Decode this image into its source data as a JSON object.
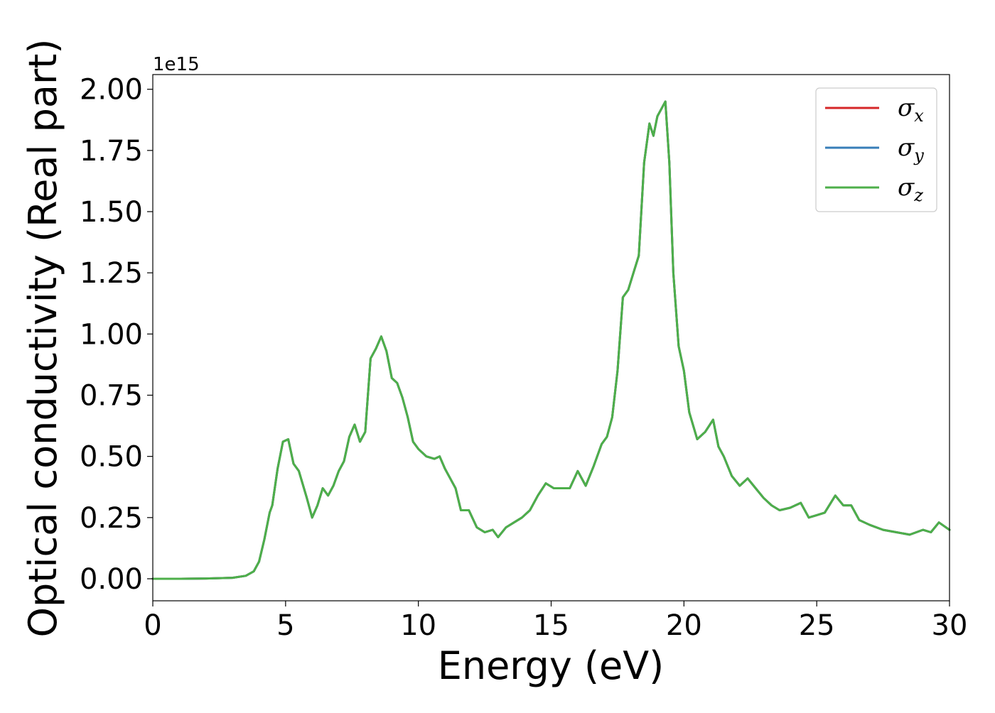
{
  "chart_data": {
    "type": "line",
    "xlabel": "Energy (eV)",
    "ylabel": "Optical conductivity (Real part)",
    "y_offset_label": "1e15",
    "y_scale": 1000000000000000.0,
    "xlim": [
      0,
      30
    ],
    "ylim": [
      -0.09,
      2.06
    ],
    "xticks": [
      0,
      5,
      10,
      15,
      20,
      25,
      30
    ],
    "xtick_labels": [
      "0",
      "5",
      "10",
      "15",
      "20",
      "25",
      "30"
    ],
    "yticks": [
      0.0,
      0.25,
      0.5,
      0.75,
      1.0,
      1.25,
      1.5,
      1.75,
      2.0
    ],
    "ytick_labels": [
      "0.00",
      "0.25",
      "0.50",
      "0.75",
      "1.00",
      "1.25",
      "1.50",
      "1.75",
      "2.00"
    ],
    "grid": false,
    "legend_position": "top-right",
    "x": [
      0,
      1,
      2,
      3,
      3.5,
      3.8,
      4.0,
      4.2,
      4.4,
      4.5,
      4.7,
      4.9,
      5.1,
      5.3,
      5.5,
      5.8,
      6.0,
      6.2,
      6.4,
      6.6,
      6.8,
      7.0,
      7.2,
      7.4,
      7.6,
      7.8,
      8.0,
      8.2,
      8.4,
      8.6,
      8.8,
      9.0,
      9.2,
      9.4,
      9.6,
      9.8,
      10.0,
      10.3,
      10.6,
      10.8,
      11.0,
      11.2,
      11.4,
      11.6,
      11.9,
      12.2,
      12.5,
      12.8,
      13.0,
      13.3,
      13.6,
      13.9,
      14.2,
      14.5,
      14.8,
      15.1,
      15.4,
      15.7,
      16.0,
      16.3,
      16.6,
      16.9,
      17.1,
      17.3,
      17.5,
      17.7,
      17.9,
      18.1,
      18.3,
      18.5,
      18.7,
      18.85,
      19.0,
      19.15,
      19.3,
      19.45,
      19.6,
      19.8,
      20.0,
      20.2,
      20.5,
      20.8,
      21.1,
      21.3,
      21.5,
      21.8,
      22.1,
      22.4,
      22.7,
      23.0,
      23.3,
      23.6,
      24.0,
      24.4,
      24.7,
      25.0,
      25.3,
      25.7,
      26.0,
      26.3,
      26.6,
      27.0,
      27.5,
      28.0,
      28.5,
      29.0,
      29.3,
      29.6,
      30.0
    ],
    "series": [
      {
        "name": "σx",
        "color": "#d62728",
        "values": [
          0.0,
          0.0,
          0.001,
          0.004,
          0.012,
          0.03,
          0.07,
          0.16,
          0.27,
          0.3,
          0.45,
          0.56,
          0.57,
          0.47,
          0.44,
          0.33,
          0.25,
          0.3,
          0.37,
          0.34,
          0.38,
          0.44,
          0.48,
          0.58,
          0.63,
          0.56,
          0.6,
          0.9,
          0.94,
          0.99,
          0.93,
          0.82,
          0.8,
          0.74,
          0.66,
          0.56,
          0.53,
          0.5,
          0.49,
          0.5,
          0.45,
          0.41,
          0.37,
          0.28,
          0.28,
          0.21,
          0.19,
          0.2,
          0.17,
          0.21,
          0.23,
          0.25,
          0.28,
          0.34,
          0.39,
          0.37,
          0.37,
          0.37,
          0.44,
          0.38,
          0.46,
          0.55,
          0.58,
          0.66,
          0.85,
          1.15,
          1.18,
          1.25,
          1.32,
          1.7,
          1.86,
          1.81,
          1.89,
          1.92,
          1.95,
          1.7,
          1.25,
          0.95,
          0.85,
          0.68,
          0.57,
          0.6,
          0.65,
          0.54,
          0.5,
          0.42,
          0.38,
          0.41,
          0.37,
          0.33,
          0.3,
          0.28,
          0.29,
          0.31,
          0.25,
          0.26,
          0.27,
          0.34,
          0.3,
          0.3,
          0.24,
          0.22,
          0.2,
          0.19,
          0.18,
          0.2,
          0.19,
          0.23,
          0.2
        ]
      },
      {
        "name": "σy",
        "color": "#377eb8",
        "values": [
          0.0,
          0.0,
          0.001,
          0.004,
          0.012,
          0.03,
          0.07,
          0.16,
          0.27,
          0.3,
          0.45,
          0.56,
          0.57,
          0.47,
          0.44,
          0.33,
          0.25,
          0.3,
          0.37,
          0.34,
          0.38,
          0.44,
          0.48,
          0.58,
          0.63,
          0.56,
          0.6,
          0.9,
          0.94,
          0.99,
          0.93,
          0.82,
          0.8,
          0.74,
          0.66,
          0.56,
          0.53,
          0.5,
          0.49,
          0.5,
          0.45,
          0.41,
          0.37,
          0.28,
          0.28,
          0.21,
          0.19,
          0.2,
          0.17,
          0.21,
          0.23,
          0.25,
          0.28,
          0.34,
          0.39,
          0.37,
          0.37,
          0.37,
          0.44,
          0.38,
          0.46,
          0.55,
          0.58,
          0.66,
          0.85,
          1.15,
          1.18,
          1.25,
          1.32,
          1.7,
          1.86,
          1.81,
          1.89,
          1.92,
          1.95,
          1.7,
          1.25,
          0.95,
          0.85,
          0.68,
          0.57,
          0.6,
          0.65,
          0.54,
          0.5,
          0.42,
          0.38,
          0.41,
          0.37,
          0.33,
          0.3,
          0.28,
          0.29,
          0.31,
          0.25,
          0.26,
          0.27,
          0.34,
          0.3,
          0.3,
          0.24,
          0.22,
          0.2,
          0.19,
          0.18,
          0.2,
          0.19,
          0.23,
          0.2
        ]
      },
      {
        "name": "σz",
        "color": "#4daf4a",
        "values": [
          0.0,
          0.0,
          0.001,
          0.004,
          0.012,
          0.03,
          0.07,
          0.16,
          0.27,
          0.3,
          0.45,
          0.56,
          0.57,
          0.47,
          0.44,
          0.33,
          0.25,
          0.3,
          0.37,
          0.34,
          0.38,
          0.44,
          0.48,
          0.58,
          0.63,
          0.56,
          0.6,
          0.9,
          0.94,
          0.99,
          0.93,
          0.82,
          0.8,
          0.74,
          0.66,
          0.56,
          0.53,
          0.5,
          0.49,
          0.5,
          0.45,
          0.41,
          0.37,
          0.28,
          0.28,
          0.21,
          0.19,
          0.2,
          0.17,
          0.21,
          0.23,
          0.25,
          0.28,
          0.34,
          0.39,
          0.37,
          0.37,
          0.37,
          0.44,
          0.38,
          0.46,
          0.55,
          0.58,
          0.66,
          0.85,
          1.15,
          1.18,
          1.25,
          1.32,
          1.7,
          1.86,
          1.81,
          1.89,
          1.92,
          1.95,
          1.7,
          1.25,
          0.95,
          0.85,
          0.68,
          0.57,
          0.6,
          0.65,
          0.54,
          0.5,
          0.42,
          0.38,
          0.41,
          0.37,
          0.33,
          0.3,
          0.28,
          0.29,
          0.31,
          0.25,
          0.26,
          0.27,
          0.34,
          0.3,
          0.3,
          0.24,
          0.22,
          0.2,
          0.19,
          0.18,
          0.2,
          0.19,
          0.23,
          0.2
        ]
      }
    ]
  }
}
